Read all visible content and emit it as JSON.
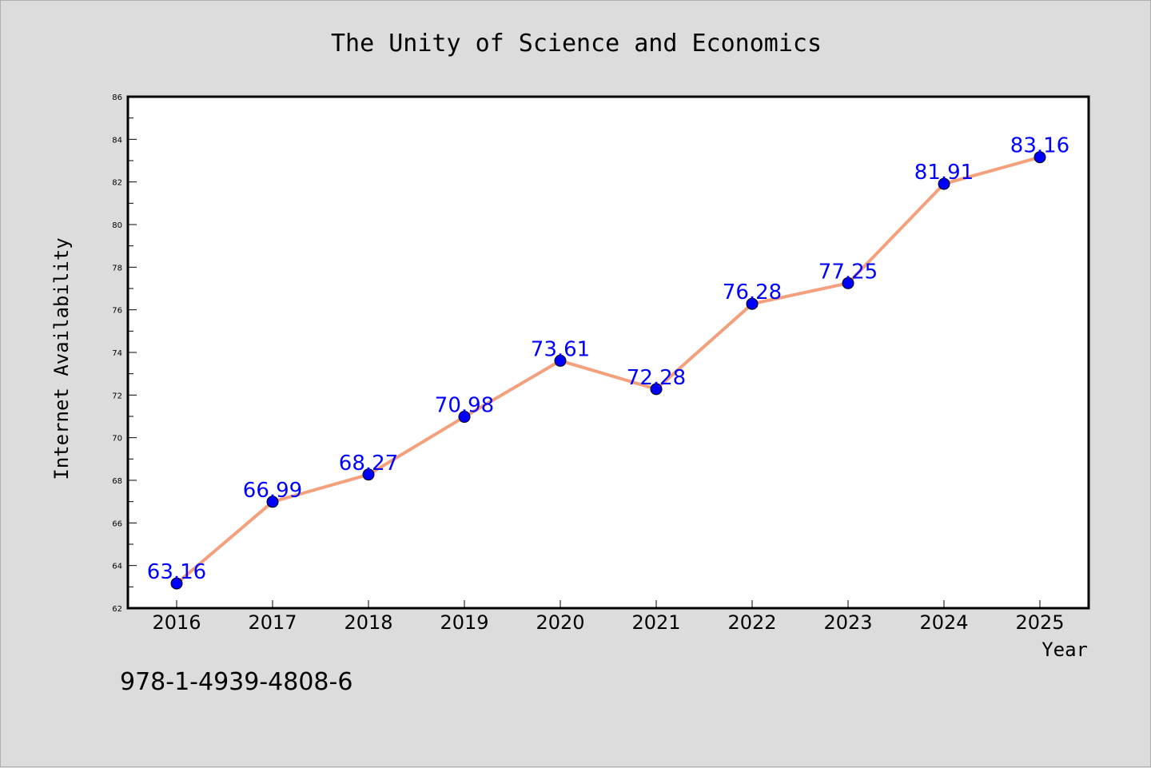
{
  "chart_data": {
    "type": "line",
    "title": "The Unity of Science and Economics",
    "xlabel": "Year",
    "ylabel": "Internet Availability",
    "categories": [
      "2016",
      "2017",
      "2018",
      "2019",
      "2020",
      "2021",
      "2022",
      "2023",
      "2024",
      "2025"
    ],
    "series": [
      {
        "values": [
          63.16,
          66.99,
          68.27,
          70.98,
          73.61,
          72.28,
          76.28,
          77.25,
          81.91,
          83.16
        ],
        "data_labels": [
          "63.16",
          "66.99",
          "68.27",
          "70.98",
          "73.61",
          "72.28",
          "76.28",
          "77.25",
          "81.91",
          "83.16"
        ],
        "line_color": "#f4a07c",
        "marker_color": "#0000ff"
      }
    ],
    "ylim": [
      62,
      86
    ],
    "yticks": [
      "62",
      "64",
      "66",
      "68",
      "70",
      "72",
      "74",
      "76",
      "78",
      "80",
      "82",
      "84",
      "86"
    ],
    "grid": false,
    "legend": "none"
  },
  "footer": {
    "isbn": "978-1-4939-4808-6"
  },
  "colors": {
    "background": "#dcdcdc",
    "plot_background": "#ffffff",
    "axes": "#000000"
  }
}
